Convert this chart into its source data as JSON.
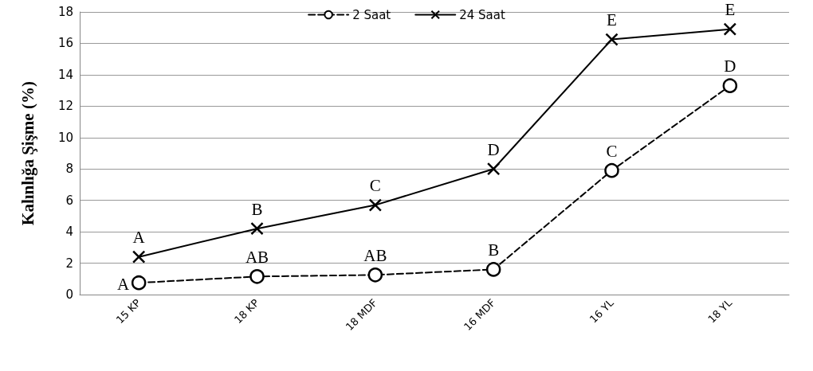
{
  "chart_data": {
    "type": "line",
    "ylabel": "Kalınlığa Şişme (%)",
    "categories": [
      "15 KP",
      "18 KP",
      "18 MDF",
      "16 MDF",
      "16 YL",
      "18 YL"
    ],
    "series": [
      {
        "name": "2 Saat",
        "color": "#000000",
        "marker": "circle",
        "line_style": "dashed",
        "values": [
          0.75,
          1.15,
          1.25,
          1.6,
          7.9,
          13.3
        ]
      },
      {
        "name": "24 Saat",
        "color": "#000000",
        "marker": "cross",
        "line_style": "solid",
        "values": [
          2.4,
          4.2,
          5.7,
          8.0,
          16.25,
          16.9
        ]
      }
    ],
    "ylim": [
      0,
      18
    ],
    "yticks": [
      0,
      2,
      4,
      6,
      8,
      10,
      12,
      14,
      16,
      18
    ],
    "grid": "y",
    "legend": "top",
    "annotations": [
      {
        "text": "A",
        "x": "15 KP",
        "y": 0.75
      },
      {
        "text": "AB",
        "x": "18 KP",
        "y": 1.15
      },
      {
        "text": "AB",
        "x": "18 MDF",
        "y": 1.25
      },
      {
        "text": "B",
        "x": "16 MDF",
        "y": 1.6
      },
      {
        "text": "C",
        "x": "16 YL",
        "y": 7.9
      },
      {
        "text": "D",
        "x": "18 YL",
        "y": 13.3
      },
      {
        "text": "A",
        "x": "15 KP",
        "y": 2.4
      },
      {
        "text": "B",
        "x": "18 KP",
        "y": 4.2
      },
      {
        "text": "C",
        "x": "18 MDF",
        "y": 5.7
      },
      {
        "text": "D",
        "x": "16 MDF",
        "y": 8.0
      },
      {
        "text": "E",
        "x": "16 YL",
        "y": 16.25
      },
      {
        "text": "E",
        "x": "18 YL",
        "y": 16.9
      }
    ]
  }
}
